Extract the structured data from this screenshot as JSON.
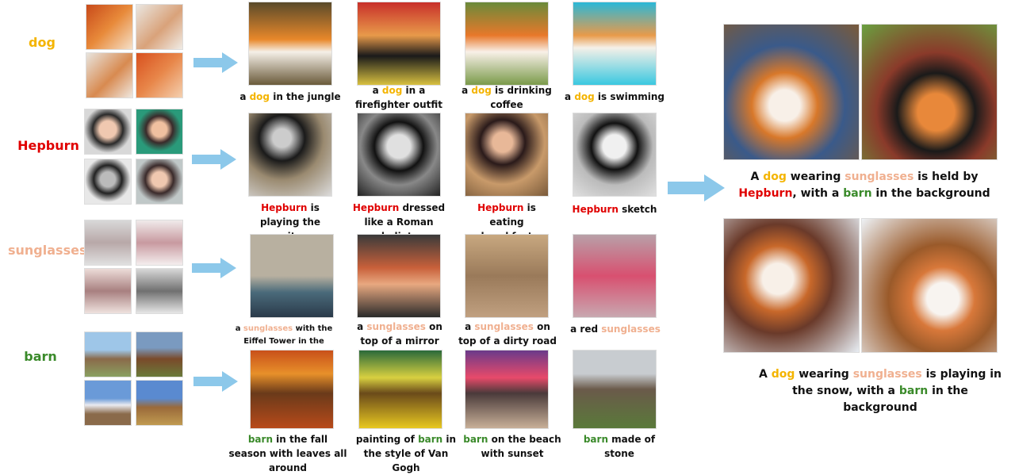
{
  "colors": {
    "dog": "#f4b400",
    "hepburn": "#e00000",
    "sunglasses": "#f0b090",
    "barn": "#3a8a2a",
    "arrow": "#8cc8ea",
    "text": "#111111"
  },
  "concepts": {
    "dog": "dog",
    "hepburn": "Hepburn",
    "sunglasses": "sunglasses",
    "barn": "barn"
  },
  "rows": {
    "dog": [
      {
        "pre": "a ",
        "kw": "dog",
        "post": " in the jungle"
      },
      {
        "pre": "a ",
        "kw": "dog",
        "post": " in a firefighter outfit"
      },
      {
        "pre": "a ",
        "kw": "dog",
        "post": " is drinking coffee"
      },
      {
        "pre": "a ",
        "kw": "dog",
        "post": " is swimming"
      }
    ],
    "hepburn": [
      {
        "pre": "",
        "kw": "Hepburn",
        "post": " is playing the guitar"
      },
      {
        "pre": "",
        "kw": "Hepburn",
        "post": " dressed like a Roman gladiator"
      },
      {
        "pre": "",
        "kw": "Hepburn",
        "post": " is eating breakfast"
      },
      {
        "pre": "",
        "kw": "Hepburn",
        "post": " sketch"
      }
    ],
    "sunglasses": [
      {
        "pre": "a ",
        "kw": "sunglasses",
        "post": " with the Eiffel Tower in the background"
      },
      {
        "pre": "a ",
        "kw": "sunglasses",
        "post": " on top of a mirror"
      },
      {
        "pre": "a ",
        "kw": "sunglasses",
        "post": " on top of a dirty road"
      },
      {
        "pre": "a red ",
        "kw": "sunglasses",
        "post": ""
      }
    ],
    "barn": [
      {
        "pre": "",
        "kw": "barn",
        "post": " in the fall season with leaves all around"
      },
      {
        "pre": "painting of ",
        "kw": "barn",
        "post": " in the style of Van Gogh"
      },
      {
        "pre": "",
        "kw": "barn",
        "post": " on the beach with sunset"
      },
      {
        "pre": "",
        "kw": "barn",
        "post": " made of stone"
      }
    ]
  },
  "combined": [
    {
      "a": "A ",
      "dog": "dog",
      "b": " wearing ",
      "sunglasses": "sunglasses",
      "c": " is held by ",
      "hepburn": "Hepburn",
      "d": ", with a ",
      "barn": "barn",
      "e": " in the background"
    },
    {
      "a": "A ",
      "dog": "dog",
      "b": " wearing ",
      "sunglasses": "sunglasses",
      "c": " is playing in the snow, with a ",
      "barn": "barn",
      "e": " in the background"
    }
  ]
}
